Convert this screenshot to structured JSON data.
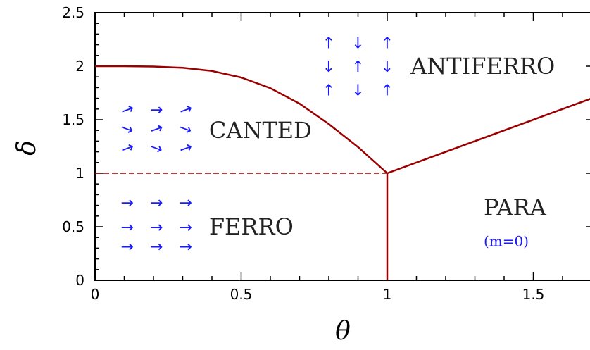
{
  "chart_data": {
    "type": "line",
    "xlabel": "θ",
    "ylabel": "δ",
    "xlim": [
      0,
      1.7
    ],
    "ylim": [
      0,
      2.5
    ],
    "xticks": [
      {
        "value": 0,
        "label": "0"
      },
      {
        "value": 0.5,
        "label": "0.5"
      },
      {
        "value": 1,
        "label": "1"
      },
      {
        "value": 1.5,
        "label": "1.5"
      }
    ],
    "yticks": [
      {
        "value": 0,
        "label": "0"
      },
      {
        "value": 0.5,
        "label": "0.5"
      },
      {
        "value": 1,
        "label": "1"
      },
      {
        "value": 1.5,
        "label": "1.5"
      },
      {
        "value": 2,
        "label": "2"
      },
      {
        "value": 2.5,
        "label": "2.5"
      }
    ],
    "series": [
      {
        "style": "solid",
        "color": "#9b0000",
        "x": [
          0,
          0.1,
          0.2,
          0.3,
          0.4,
          0.5,
          0.6,
          0.7,
          0.8,
          0.9,
          1.0
        ],
        "y": [
          2.0,
          2.0,
          1.997,
          1.985,
          1.955,
          1.895,
          1.795,
          1.65,
          1.46,
          1.245,
          1.0
        ]
      },
      {
        "style": "dashed",
        "color": "#9b0000",
        "x": [
          0,
          1.0
        ],
        "y": [
          1.0,
          1.0
        ]
      },
      {
        "style": "solid",
        "color": "#9b0000",
        "x": [
          1.0,
          1.0
        ],
        "y": [
          0,
          1.0
        ]
      },
      {
        "style": "solid",
        "color": "#9b0000",
        "x": [
          1.0,
          1.7
        ],
        "y": [
          1.0,
          1.7
        ]
      }
    ],
    "annotations": [
      {
        "text": "ANTIFERRO",
        "x": 1.08,
        "y": 2.0
      },
      {
        "text": "CANTED",
        "x": 0.39,
        "y": 1.4
      },
      {
        "text": "FERRO",
        "x": 0.39,
        "y": 0.5
      },
      {
        "text": "PARA",
        "x": 1.33,
        "y": 0.68
      },
      {
        "text": "(m=0)",
        "x": 1.33,
        "y": 0.39,
        "color": "#1a1aff"
      }
    ],
    "spin_arrows": [
      {
        "glyph": "↑",
        "x": 0.8,
        "y": 2.22
      },
      {
        "glyph": "↓",
        "x": 0.9,
        "y": 2.22
      },
      {
        "glyph": "↑",
        "x": 1.0,
        "y": 2.22
      },
      {
        "glyph": "↓",
        "x": 0.8,
        "y": 2.0
      },
      {
        "glyph": "↑",
        "x": 0.9,
        "y": 2.0
      },
      {
        "glyph": "↓",
        "x": 1.0,
        "y": 2.0
      },
      {
        "glyph": "↑",
        "x": 0.8,
        "y": 1.78
      },
      {
        "glyph": "↓",
        "x": 0.9,
        "y": 1.78
      },
      {
        "glyph": "↑",
        "x": 1.0,
        "y": 1.78
      },
      {
        "glyph": "→",
        "x": 0.11,
        "y": 1.6,
        "rot": -20
      },
      {
        "glyph": "→",
        "x": 0.21,
        "y": 1.6,
        "rot": 0
      },
      {
        "glyph": "→",
        "x": 0.31,
        "y": 1.6,
        "rot": -20
      },
      {
        "glyph": "→",
        "x": 0.11,
        "y": 1.42,
        "rot": 20
      },
      {
        "glyph": "→",
        "x": 0.21,
        "y": 1.42,
        "rot": -20
      },
      {
        "glyph": "→",
        "x": 0.31,
        "y": 1.42,
        "rot": 20
      },
      {
        "glyph": "→",
        "x": 0.11,
        "y": 1.24,
        "rot": -20
      },
      {
        "glyph": "→",
        "x": 0.21,
        "y": 1.24,
        "rot": 20
      },
      {
        "glyph": "→",
        "x": 0.31,
        "y": 1.24,
        "rot": -20
      },
      {
        "glyph": "→",
        "x": 0.11,
        "y": 0.73,
        "rot": 0
      },
      {
        "glyph": "→",
        "x": 0.21,
        "y": 0.73,
        "rot": 0
      },
      {
        "glyph": "→",
        "x": 0.31,
        "y": 0.73,
        "rot": 0
      },
      {
        "glyph": "→",
        "x": 0.11,
        "y": 0.5,
        "rot": 0
      },
      {
        "glyph": "→",
        "x": 0.21,
        "y": 0.5,
        "rot": 0
      },
      {
        "glyph": "→",
        "x": 0.31,
        "y": 0.5,
        "rot": 0
      },
      {
        "glyph": "→",
        "x": 0.11,
        "y": 0.32,
        "rot": 0
      },
      {
        "glyph": "→",
        "x": 0.21,
        "y": 0.32,
        "rot": 0
      },
      {
        "glyph": "→",
        "x": 0.31,
        "y": 0.32,
        "rot": 0
      }
    ]
  }
}
